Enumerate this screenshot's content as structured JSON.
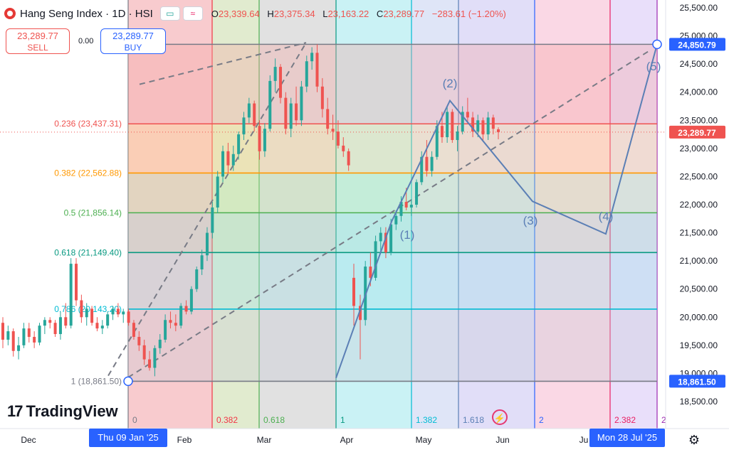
{
  "header": {
    "title": "Hang Seng Index · 1D · HSI",
    "indicator_icon_1": "▭",
    "indicator_icon_2": "≈",
    "ohlc": {
      "o_label": "O",
      "o": "23,339.64",
      "h_label": "H",
      "h": "23,375.34",
      "l_label": "L",
      "l": "23,163.22",
      "c_label": "C",
      "c": "23,289.77",
      "change": "−283.61 (−1.20%)"
    }
  },
  "trade": {
    "sell_price": "23,289.77",
    "sell_label": "SELL",
    "buy_price": "23,289.77",
    "buy_label": "BUY",
    "spread": "0.00"
  },
  "brand": {
    "name": "TradingView",
    "mark": "17"
  },
  "time_axis": {
    "labels": [
      "Dec",
      "Feb",
      "Mar",
      "Apr",
      "May",
      "Jun",
      "Ju"
    ],
    "crosshair_start": "Thu 09 Jan '25",
    "crosshair_end": "Mon 28 Jul '25"
  },
  "colors": {
    "up": "#26a69a",
    "down": "#ef5350",
    "price_line": "#ef5350",
    "elliott": "#5b7fb5",
    "accent": "#2962ff"
  },
  "chart_data": {
    "type": "candlestick",
    "instrument": "Hang Seng Index",
    "interval": "1D",
    "ylim": [
      18500,
      25500
    ],
    "y_ticks": [
      25500,
      25000,
      24500,
      24000,
      23500,
      23000,
      22500,
      22000,
      21500,
      21000,
      20500,
      20000,
      19500,
      19000,
      18500
    ],
    "y_tick_labels": [
      "25,500.00",
      "25,000.00",
      "24,500.00",
      "24,000.00",
      "23,500.00",
      "23,000.00",
      "22,500.00",
      "22,000.00",
      "21,500.00",
      "21,000.00",
      "20,500.00",
      "20,000.00",
      "19,500.00",
      "19,000.00",
      "18,500.00"
    ],
    "last_price": 23289.77,
    "last_price_label": "23,289.77",
    "fib_retracement": {
      "top_label": "24,850.79",
      "levels": [
        {
          "ratio": "0.236",
          "value": 23437.31,
          "label": "0.236 (23,437.31)",
          "color": "#ef5350"
        },
        {
          "ratio": "0.382",
          "value": 22562.88,
          "label": "0.382 (22,562.88)",
          "color": "#ff9800"
        },
        {
          "ratio": "0.5",
          "value": 21856.14,
          "label": "0.5 (21,856.14)",
          "color": "#4caf50"
        },
        {
          "ratio": "0.618",
          "value": 21149.4,
          "label": "0.618 (21,149.40)",
          "color": "#089981"
        },
        {
          "ratio": "0.786",
          "value": 20143.2,
          "label": "0.786 (20,143.20)",
          "color": "#00bcd4"
        },
        {
          "ratio": "1",
          "value": 18861.5,
          "label": "1 (18,861.50)",
          "color": "#787b86"
        }
      ],
      "top_value": 24850.79,
      "bottom_value": 18861.5,
      "bottom_axis_label": "18,861.50"
    },
    "fib_time_zones": [
      "0",
      "0.382",
      "0.618",
      "1",
      "1.382",
      "1.618",
      "2",
      "2.382",
      "2"
    ],
    "elliott_wave_labels": [
      "(1)",
      "(2)",
      "(3)",
      "(4)",
      "(5)"
    ],
    "elliott_wave_points": [
      {
        "label": "0",
        "y": 18920
      },
      {
        "label": "(1)",
        "y": 21700
      },
      {
        "label": "(2)",
        "y": 23850
      },
      {
        "label": "(3)",
        "y": 22060
      },
      {
        "label": "(4)",
        "y": 21480
      },
      {
        "label": "(5)",
        "y": 24850.79
      }
    ],
    "candles": [
      {
        "o": 19900,
        "h": 20000,
        "l": 19450,
        "c": 19600
      },
      {
        "o": 19600,
        "h": 19850,
        "l": 19500,
        "c": 19750
      },
      {
        "o": 19750,
        "h": 19800,
        "l": 19300,
        "c": 19400
      },
      {
        "o": 19400,
        "h": 19650,
        "l": 19250,
        "c": 19500
      },
      {
        "o": 19500,
        "h": 19900,
        "l": 19450,
        "c": 19800
      },
      {
        "o": 19800,
        "h": 19900,
        "l": 19550,
        "c": 19650
      },
      {
        "o": 19650,
        "h": 19750,
        "l": 19450,
        "c": 19550
      },
      {
        "o": 19550,
        "h": 19900,
        "l": 19500,
        "c": 19850
      },
      {
        "o": 19850,
        "h": 20000,
        "l": 19700,
        "c": 19950
      },
      {
        "o": 19950,
        "h": 20000,
        "l": 19800,
        "c": 19900
      },
      {
        "o": 19900,
        "h": 19950,
        "l": 19650,
        "c": 19700
      },
      {
        "o": 19700,
        "h": 20100,
        "l": 19600,
        "c": 20000
      },
      {
        "o": 20000,
        "h": 20250,
        "l": 19800,
        "c": 19850
      },
      {
        "o": 19850,
        "h": 21050,
        "l": 19800,
        "c": 20950
      },
      {
        "o": 20950,
        "h": 21050,
        "l": 20200,
        "c": 20300
      },
      {
        "o": 20300,
        "h": 20400,
        "l": 19900,
        "c": 20000
      },
      {
        "o": 20000,
        "h": 20250,
        "l": 19850,
        "c": 20150
      },
      {
        "o": 20150,
        "h": 20200,
        "l": 19850,
        "c": 19900
      },
      {
        "o": 19900,
        "h": 20000,
        "l": 19750,
        "c": 19800
      },
      {
        "o": 19800,
        "h": 19950,
        "l": 19700,
        "c": 19850
      },
      {
        "o": 19850,
        "h": 20100,
        "l": 19800,
        "c": 20050
      },
      {
        "o": 20050,
        "h": 20200,
        "l": 19950,
        "c": 20150
      },
      {
        "o": 20150,
        "h": 20250,
        "l": 20000,
        "c": 20050
      },
      {
        "o": 20050,
        "h": 20150,
        "l": 19900,
        "c": 20100
      },
      {
        "o": 20100,
        "h": 20150,
        "l": 19850,
        "c": 19900
      },
      {
        "o": 19900,
        "h": 19950,
        "l": 19600,
        "c": 19650
      },
      {
        "o": 19650,
        "h": 19750,
        "l": 19400,
        "c": 19500
      },
      {
        "o": 19500,
        "h": 19600,
        "l": 19150,
        "c": 19250
      },
      {
        "o": 19250,
        "h": 19400,
        "l": 19050,
        "c": 19100
      },
      {
        "o": 19100,
        "h": 19500,
        "l": 18950,
        "c": 19450
      },
      {
        "o": 19450,
        "h": 19700,
        "l": 19350,
        "c": 19600
      },
      {
        "o": 19600,
        "h": 20050,
        "l": 19550,
        "c": 19950
      },
      {
        "o": 19950,
        "h": 20100,
        "l": 19800,
        "c": 19900
      },
      {
        "o": 19900,
        "h": 20050,
        "l": 19750,
        "c": 19850
      },
      {
        "o": 19850,
        "h": 20250,
        "l": 19800,
        "c": 20200
      },
      {
        "o": 20200,
        "h": 20300,
        "l": 20050,
        "c": 20100
      },
      {
        "o": 20100,
        "h": 20550,
        "l": 20050,
        "c": 20500
      },
      {
        "o": 20500,
        "h": 20900,
        "l": 20450,
        "c": 20850
      },
      {
        "o": 20850,
        "h": 21200,
        "l": 20750,
        "c": 21100
      },
      {
        "o": 21100,
        "h": 21600,
        "l": 21000,
        "c": 21500
      },
      {
        "o": 21500,
        "h": 22050,
        "l": 21400,
        "c": 21950
      },
      {
        "o": 21950,
        "h": 22600,
        "l": 21850,
        "c": 22500
      },
      {
        "o": 22500,
        "h": 23050,
        "l": 22400,
        "c": 22950
      },
      {
        "o": 22950,
        "h": 23100,
        "l": 22550,
        "c": 22700
      },
      {
        "o": 22700,
        "h": 23050,
        "l": 22600,
        "c": 22900
      },
      {
        "o": 22900,
        "h": 23300,
        "l": 22800,
        "c": 23250
      },
      {
        "o": 23250,
        "h": 23650,
        "l": 23150,
        "c": 23550
      },
      {
        "o": 23550,
        "h": 23900,
        "l": 23450,
        "c": 23800
      },
      {
        "o": 23800,
        "h": 23850,
        "l": 23300,
        "c": 23400
      },
      {
        "o": 23400,
        "h": 23500,
        "l": 22800,
        "c": 22950
      },
      {
        "o": 22950,
        "h": 23450,
        "l": 22850,
        "c": 23350
      },
      {
        "o": 23350,
        "h": 24300,
        "l": 23300,
        "c": 24200
      },
      {
        "o": 24200,
        "h": 24600,
        "l": 24000,
        "c": 24450
      },
      {
        "o": 24450,
        "h": 24500,
        "l": 23800,
        "c": 23900
      },
      {
        "o": 23900,
        "h": 24000,
        "l": 23250,
        "c": 23350
      },
      {
        "o": 23350,
        "h": 23900,
        "l": 23200,
        "c": 23800
      },
      {
        "o": 23800,
        "h": 24100,
        "l": 23400,
        "c": 23500
      },
      {
        "o": 23500,
        "h": 24200,
        "l": 23400,
        "c": 24100
      },
      {
        "o": 24100,
        "h": 24650,
        "l": 24000,
        "c": 24550
      },
      {
        "o": 24550,
        "h": 24800,
        "l": 24400,
        "c": 24700
      },
      {
        "o": 24700,
        "h": 24850,
        "l": 24000,
        "c": 24100
      },
      {
        "o": 24100,
        "h": 24250,
        "l": 23550,
        "c": 23700
      },
      {
        "o": 23700,
        "h": 23900,
        "l": 23250,
        "c": 23350
      },
      {
        "o": 23350,
        "h": 23600,
        "l": 23150,
        "c": 23300
      },
      {
        "o": 23300,
        "h": 23500,
        "l": 23000,
        "c": 23050
      },
      {
        "o": 23050,
        "h": 23200,
        "l": 22850,
        "c": 22950
      },
      {
        "o": 22950,
        "h": 23000,
        "l": 22600,
        "c": 22700
      },
      {
        "o": 20700,
        "h": 20950,
        "l": 19850,
        "c": 20200
      },
      {
        "o": 20200,
        "h": 20400,
        "l": 19250,
        "c": 19950
      },
      {
        "o": 19950,
        "h": 21000,
        "l": 19850,
        "c": 20900
      },
      {
        "o": 20900,
        "h": 21150,
        "l": 20550,
        "c": 20700
      },
      {
        "o": 20700,
        "h": 21450,
        "l": 20650,
        "c": 21350
      },
      {
        "o": 21350,
        "h": 21600,
        "l": 21150,
        "c": 21500
      },
      {
        "o": 21500,
        "h": 21600,
        "l": 21050,
        "c": 21150
      },
      {
        "o": 21150,
        "h": 21750,
        "l": 21100,
        "c": 21650
      },
      {
        "o": 21650,
        "h": 21900,
        "l": 21550,
        "c": 21800
      },
      {
        "o": 21800,
        "h": 22150,
        "l": 21700,
        "c": 22050
      },
      {
        "o": 22050,
        "h": 22300,
        "l": 21900,
        "c": 21950
      },
      {
        "o": 21950,
        "h": 22100,
        "l": 21800,
        "c": 22000
      },
      {
        "o": 22000,
        "h": 22450,
        "l": 21950,
        "c": 22400
      },
      {
        "o": 22400,
        "h": 22950,
        "l": 22350,
        "c": 22850
      },
      {
        "o": 22850,
        "h": 23150,
        "l": 22500,
        "c": 22600
      },
      {
        "o": 22600,
        "h": 22950,
        "l": 22500,
        "c": 22850
      },
      {
        "o": 22850,
        "h": 23500,
        "l": 22800,
        "c": 23400
      },
      {
        "o": 23400,
        "h": 23650,
        "l": 23100,
        "c": 23200
      },
      {
        "o": 23200,
        "h": 23750,
        "l": 23100,
        "c": 23650
      },
      {
        "o": 23650,
        "h": 23700,
        "l": 23100,
        "c": 23150
      },
      {
        "o": 23150,
        "h": 23400,
        "l": 22950,
        "c": 23300
      },
      {
        "o": 23300,
        "h": 23750,
        "l": 23250,
        "c": 23650
      },
      {
        "o": 23650,
        "h": 23900,
        "l": 23450,
        "c": 23550
      },
      {
        "o": 23550,
        "h": 23650,
        "l": 23200,
        "c": 23300
      },
      {
        "o": 23300,
        "h": 23600,
        "l": 23200,
        "c": 23500
      },
      {
        "o": 23500,
        "h": 23550,
        "l": 23150,
        "c": 23250
      },
      {
        "o": 23250,
        "h": 23650,
        "l": 23150,
        "c": 23550
      },
      {
        "o": 23550,
        "h": 23600,
        "l": 23250,
        "c": 23350
      },
      {
        "o": 23339.64,
        "h": 23375.34,
        "l": 23163.22,
        "c": 23289.77
      }
    ]
  }
}
